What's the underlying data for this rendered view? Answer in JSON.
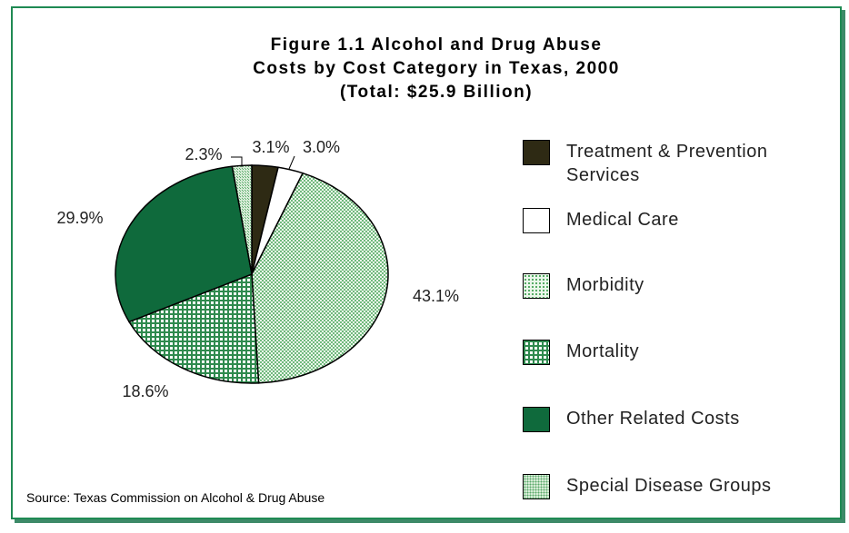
{
  "chart_data": {
    "type": "pie",
    "title_lines": [
      "Figure 1.1 Alcohol and Drug Abuse",
      "Costs by Cost Category in Texas, 2000",
      "(Total: $25.9 Billion)"
    ],
    "slices": [
      {
        "label_lines": [
          "Treatment & Prevention",
          "Services"
        ],
        "value": 3.1,
        "display": "3.1%",
        "color": "#2e2a14",
        "pattern": "solid"
      },
      {
        "label_lines": [
          "Medical Care"
        ],
        "value": 3.0,
        "display": "3.0%",
        "color": "#ffffff",
        "pattern": "solid"
      },
      {
        "label_lines": [
          "Morbidity"
        ],
        "value": 43.1,
        "display": "43.1%",
        "color": "#8fcf8f",
        "pattern": "dots"
      },
      {
        "label_lines": [
          "Mortality"
        ],
        "value": 18.6,
        "display": "18.6%",
        "color": "#2f8a4e",
        "pattern": "grid"
      },
      {
        "label_lines": [
          "Other Related Costs"
        ],
        "value": 29.9,
        "display": "29.9%",
        "color": "#0f6a3c",
        "pattern": "solid"
      },
      {
        "label_lines": [
          "Special Disease Groups"
        ],
        "value": 2.3,
        "display": "2.3%",
        "color": "#a9d6a9",
        "pattern": "fine"
      }
    ],
    "legend_position": "right"
  },
  "source": "Source: Texas Commission on Alcohol & Drug Abuse"
}
